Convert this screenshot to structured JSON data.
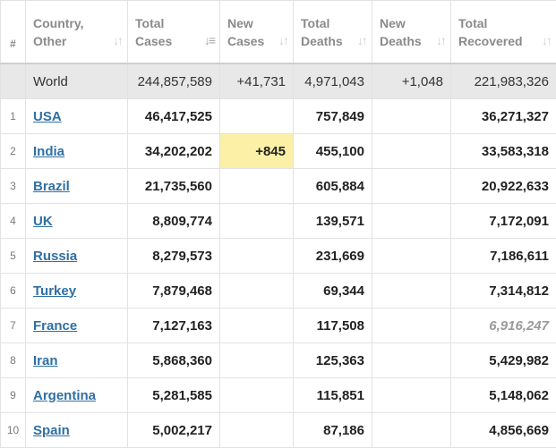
{
  "headers": [
    {
      "line1": "#",
      "line2": ""
    },
    {
      "line1": "Country,",
      "line2": "Other"
    },
    {
      "line1": "Total",
      "line2": "Cases"
    },
    {
      "line1": "New",
      "line2": "Cases"
    },
    {
      "line1": "Total",
      "line2": "Deaths"
    },
    {
      "line1": "New",
      "line2": "Deaths"
    },
    {
      "line1": "Total",
      "line2": "Recovered"
    }
  ],
  "world": {
    "country": "World",
    "total_cases": "244,857,589",
    "new_cases": "+41,731",
    "total_deaths": "4,971,043",
    "new_deaths": "+1,048",
    "total_recovered": "221,983,326"
  },
  "rows": [
    {
      "rank": "1",
      "country": "USA",
      "total_cases": "46,417,525",
      "new_cases": "",
      "total_deaths": "757,849",
      "new_deaths": "",
      "total_recovered": "36,271,327"
    },
    {
      "rank": "2",
      "country": "India",
      "total_cases": "34,202,202",
      "new_cases": "+845",
      "total_deaths": "455,100",
      "new_deaths": "",
      "total_recovered": "33,583,318"
    },
    {
      "rank": "3",
      "country": "Brazil",
      "total_cases": "21,735,560",
      "new_cases": "",
      "total_deaths": "605,884",
      "new_deaths": "",
      "total_recovered": "20,922,633"
    },
    {
      "rank": "4",
      "country": "UK",
      "total_cases": "8,809,774",
      "new_cases": "",
      "total_deaths": "139,571",
      "new_deaths": "",
      "total_recovered": "7,172,091"
    },
    {
      "rank": "5",
      "country": "Russia",
      "total_cases": "8,279,573",
      "new_cases": "",
      "total_deaths": "231,669",
      "new_deaths": "",
      "total_recovered": "7,186,611"
    },
    {
      "rank": "6",
      "country": "Turkey",
      "total_cases": "7,879,468",
      "new_cases": "",
      "total_deaths": "69,344",
      "new_deaths": "",
      "total_recovered": "7,314,812"
    },
    {
      "rank": "7",
      "country": "France",
      "total_cases": "7,127,163",
      "new_cases": "",
      "total_deaths": "117,508",
      "new_deaths": "",
      "total_recovered": "6,916,247"
    },
    {
      "rank": "8",
      "country": "Iran",
      "total_cases": "5,868,360",
      "new_cases": "",
      "total_deaths": "125,363",
      "new_deaths": "",
      "total_recovered": "5,429,982"
    },
    {
      "rank": "9",
      "country": "Argentina",
      "total_cases": "5,281,585",
      "new_cases": "",
      "total_deaths": "115,851",
      "new_deaths": "",
      "total_recovered": "5,148,062"
    },
    {
      "rank": "10",
      "country": "Spain",
      "total_cases": "5,002,217",
      "new_cases": "",
      "total_deaths": "87,186",
      "new_deaths": "",
      "total_recovered": "4,856,669"
    }
  ],
  "icons": {
    "sort": "sort-icon",
    "sort_active": "sort-descending-icon"
  },
  "colors": {
    "link": "#2f6fa4",
    "highlight": "#fbf0a6",
    "world_row": "#e8e8e8"
  }
}
